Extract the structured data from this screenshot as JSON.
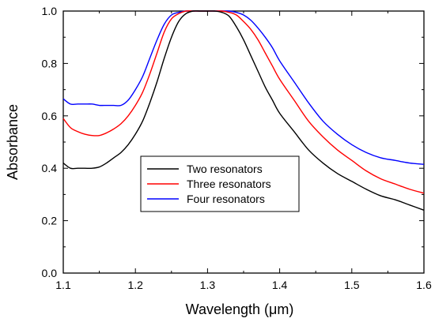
{
  "chart_data": {
    "type": "line",
    "title": "",
    "xlabel": "Wavelength (μm)",
    "ylabel": "Absorbance",
    "xlim": [
      1.1,
      1.6
    ],
    "ylim": [
      0.0,
      1.0
    ],
    "xticks": [
      "1.1",
      "1.2",
      "1.3",
      "1.4",
      "1.5",
      "1.6"
    ],
    "yticks": [
      "0.0",
      "0.2",
      "0.4",
      "0.6",
      "0.8",
      "1.0"
    ],
    "grid": false,
    "legend_position": "center-left",
    "series": [
      {
        "name": "Two resonators",
        "color": "#000000",
        "x": [
          1.1,
          1.11,
          1.12,
          1.13,
          1.14,
          1.15,
          1.16,
          1.17,
          1.18,
          1.19,
          1.2,
          1.21,
          1.22,
          1.23,
          1.24,
          1.25,
          1.26,
          1.27,
          1.28,
          1.29,
          1.3,
          1.31,
          1.32,
          1.33,
          1.34,
          1.35,
          1.36,
          1.37,
          1.38,
          1.39,
          1.4,
          1.42,
          1.44,
          1.46,
          1.48,
          1.5,
          1.52,
          1.54,
          1.56,
          1.58,
          1.6
        ],
        "y": [
          0.42,
          0.4,
          0.4,
          0.4,
          0.4,
          0.405,
          0.42,
          0.44,
          0.46,
          0.49,
          0.53,
          0.58,
          0.65,
          0.73,
          0.82,
          0.9,
          0.96,
          0.99,
          1.0,
          1.0,
          1.0,
          1.0,
          0.995,
          0.98,
          0.94,
          0.89,
          0.83,
          0.77,
          0.71,
          0.66,
          0.61,
          0.54,
          0.47,
          0.42,
          0.38,
          0.35,
          0.32,
          0.295,
          0.28,
          0.26,
          0.24
        ]
      },
      {
        "name": "Three resonators",
        "color": "#ff0000",
        "x": [
          1.1,
          1.11,
          1.12,
          1.13,
          1.14,
          1.15,
          1.16,
          1.17,
          1.18,
          1.19,
          1.2,
          1.21,
          1.22,
          1.23,
          1.24,
          1.25,
          1.26,
          1.27,
          1.28,
          1.29,
          1.3,
          1.31,
          1.32,
          1.33,
          1.34,
          1.35,
          1.36,
          1.37,
          1.38,
          1.39,
          1.4,
          1.42,
          1.44,
          1.46,
          1.48,
          1.5,
          1.52,
          1.54,
          1.56,
          1.58,
          1.6
        ],
        "y": [
          0.59,
          0.555,
          0.54,
          0.53,
          0.525,
          0.525,
          0.535,
          0.55,
          0.57,
          0.6,
          0.64,
          0.69,
          0.76,
          0.84,
          0.92,
          0.97,
          0.99,
          1.0,
          1.0,
          1.0,
          1.0,
          1.0,
          1.0,
          0.995,
          0.985,
          0.96,
          0.93,
          0.89,
          0.84,
          0.79,
          0.74,
          0.66,
          0.58,
          0.52,
          0.47,
          0.43,
          0.39,
          0.36,
          0.34,
          0.32,
          0.305
        ]
      },
      {
        "name": "Four resonators",
        "color": "#0000ff",
        "x": [
          1.1,
          1.11,
          1.12,
          1.13,
          1.14,
          1.15,
          1.16,
          1.17,
          1.18,
          1.19,
          1.2,
          1.21,
          1.22,
          1.23,
          1.24,
          1.25,
          1.26,
          1.27,
          1.28,
          1.29,
          1.3,
          1.31,
          1.32,
          1.33,
          1.34,
          1.35,
          1.36,
          1.37,
          1.38,
          1.39,
          1.4,
          1.42,
          1.44,
          1.46,
          1.48,
          1.5,
          1.52,
          1.54,
          1.56,
          1.58,
          1.6
        ],
        "y": [
          0.665,
          0.645,
          0.645,
          0.645,
          0.645,
          0.64,
          0.64,
          0.64,
          0.64,
          0.66,
          0.7,
          0.75,
          0.82,
          0.89,
          0.95,
          0.985,
          0.995,
          1.0,
          1.0,
          1.0,
          1.0,
          1.0,
          1.0,
          1.0,
          0.995,
          0.985,
          0.965,
          0.935,
          0.9,
          0.86,
          0.81,
          0.73,
          0.65,
          0.58,
          0.53,
          0.49,
          0.46,
          0.44,
          0.43,
          0.42,
          0.415
        ]
      }
    ]
  }
}
